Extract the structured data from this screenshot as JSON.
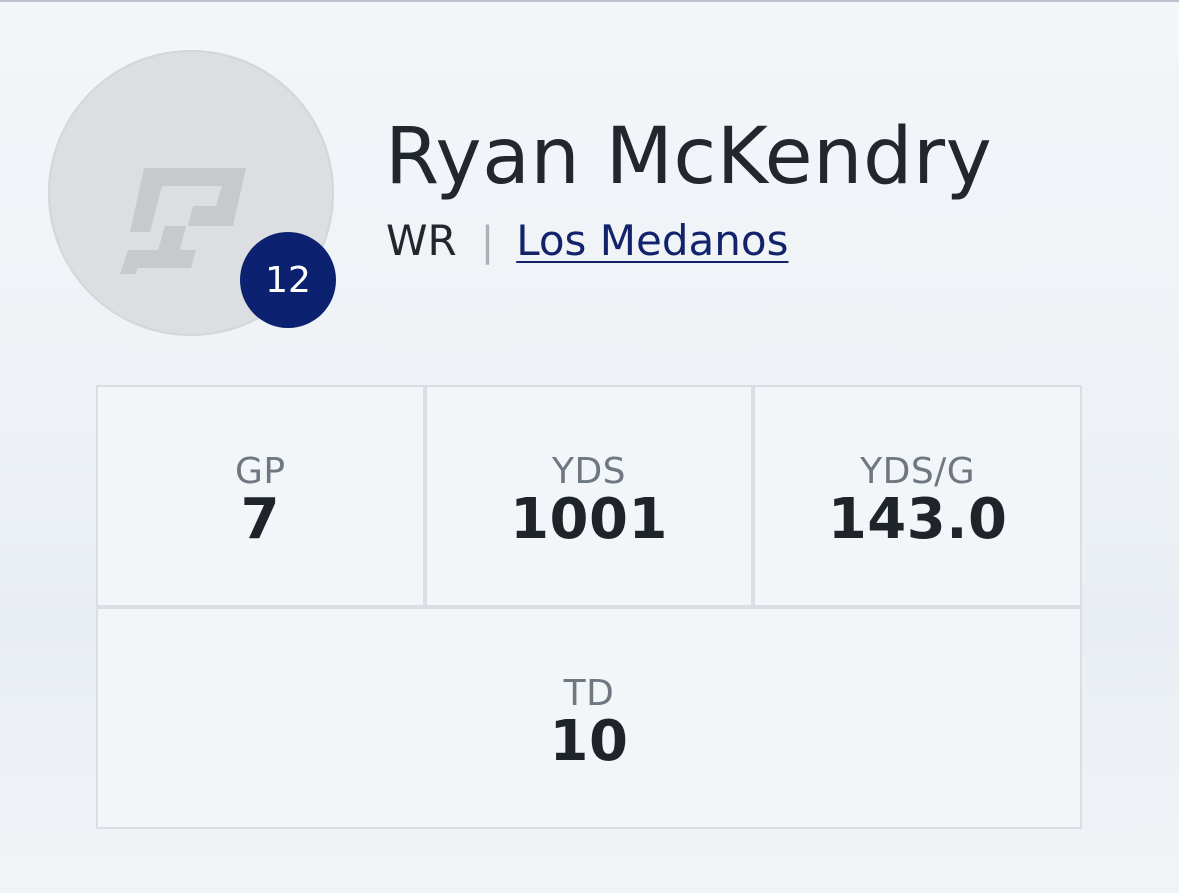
{
  "player": {
    "name": "Ryan McKendry",
    "position": "WR",
    "separator": "|",
    "school": "Los Medanos",
    "jersey_number": "12",
    "avatar_icon": "placeholder-logo-icon"
  },
  "stats": [
    {
      "label": "GP",
      "value": "7"
    },
    {
      "label": "YDS",
      "value": "1001"
    },
    {
      "label": "YDS/G",
      "value": "143.0"
    },
    {
      "label": "TD",
      "value": "10"
    }
  ],
  "colors": {
    "badge": "#0c2270",
    "link": "#12236b",
    "label": "#6f7780",
    "value": "#1f242b"
  }
}
